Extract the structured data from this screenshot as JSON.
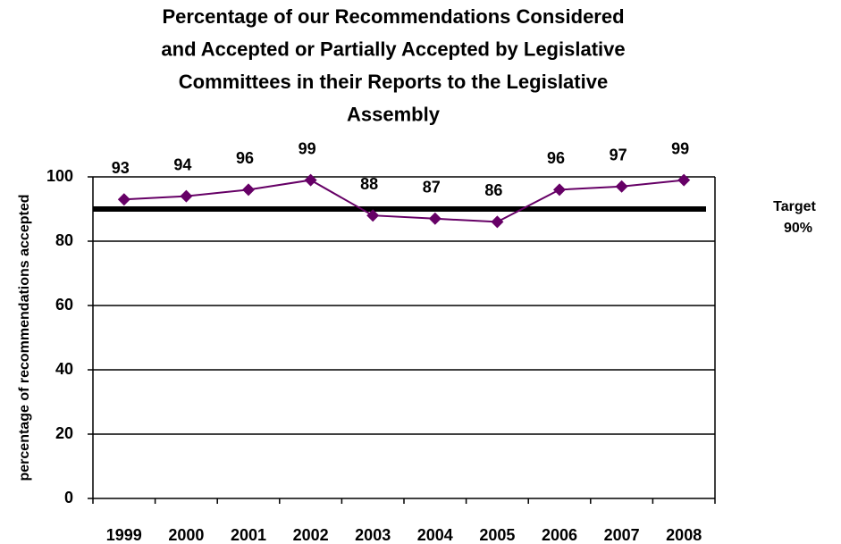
{
  "chart_data": {
    "type": "line",
    "title": [
      "Percentage of our Recommendations Considered",
      "and Accepted or Partially Accepted by Legislative",
      "Committees in their Reports to the Legislative",
      "Assembly"
    ],
    "y_label": "percentage of recommendations accepted",
    "categories": [
      "1999",
      "2000",
      "2001",
      "2002",
      "2003",
      "2004",
      "2005",
      "2006",
      "2007",
      "2008"
    ],
    "series": [
      {
        "color": "#660066",
        "values": [
          93,
          94,
          96,
          99,
          88,
          87,
          86,
          96,
          97,
          99
        ]
      }
    ],
    "target": {
      "value": 90,
      "label": "Target",
      "value_label": "90%",
      "color": "#000000"
    },
    "ylim": [
      0,
      100
    ],
    "yticks": [
      0,
      20,
      40,
      60,
      80,
      100
    ],
    "grid": true
  }
}
